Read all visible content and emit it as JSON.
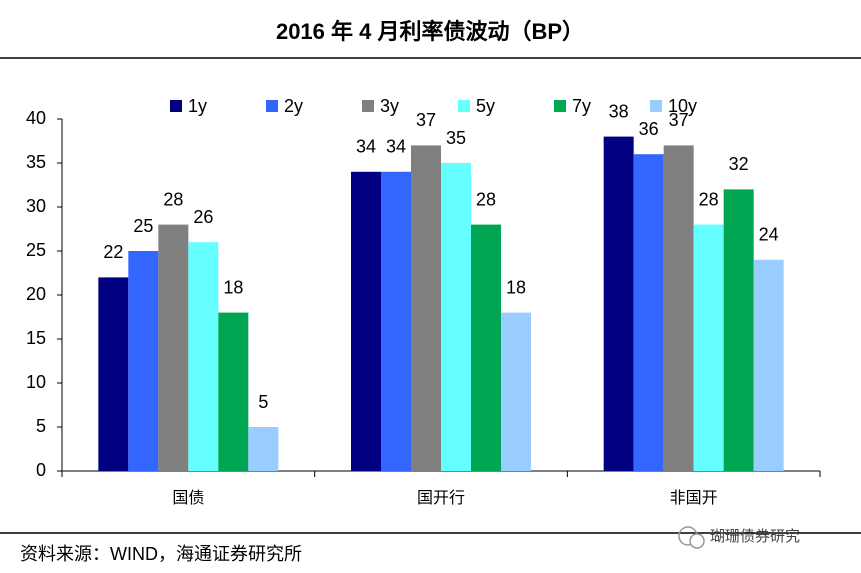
{
  "chart_data": {
    "type": "bar",
    "title": "2016 年 4 月利率债波动（BP）",
    "categories": [
      "国债",
      "国开行",
      "非国开"
    ],
    "series": [
      {
        "name": "1y",
        "color": "#000080",
        "values": [
          22,
          34,
          38
        ]
      },
      {
        "name": "2y",
        "color": "#3366ff",
        "values": [
          25,
          34,
          36
        ]
      },
      {
        "name": "3y",
        "color": "#808080",
        "values": [
          28,
          37,
          37
        ]
      },
      {
        "name": "5y",
        "color": "#66ffff",
        "values": [
          26,
          35,
          28
        ]
      },
      {
        "name": "7y",
        "color": "#00a651",
        "values": [
          18,
          28,
          32
        ]
      },
      {
        "name": "10y",
        "color": "#99ccff",
        "values": [
          5,
          18,
          24
        ]
      }
    ],
    "ylim": [
      0,
      40
    ],
    "yticks": [
      0,
      5,
      10,
      15,
      20,
      25,
      30,
      35,
      40
    ]
  },
  "source": "资料来源：WIND，海通证券研究所",
  "watermark": "瑚珊债券研究"
}
